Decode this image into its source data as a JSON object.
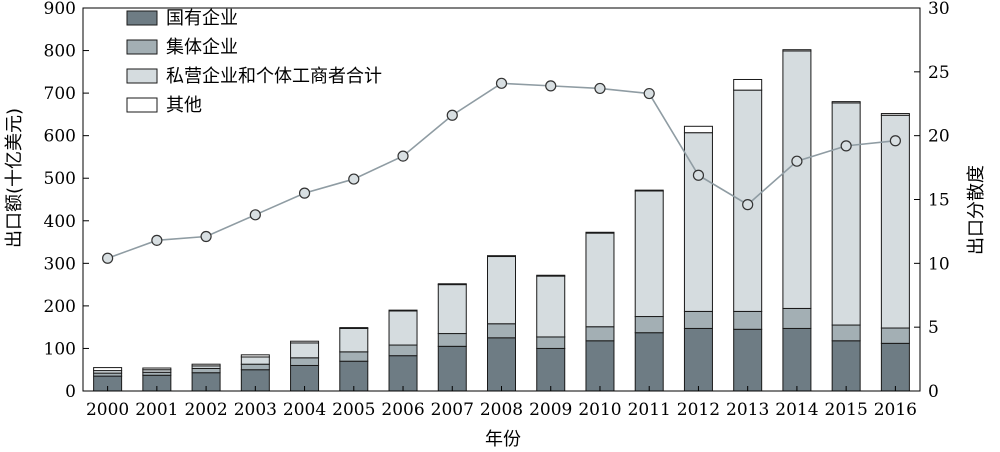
{
  "chart_data": {
    "type": "bar",
    "stacked": true,
    "xlabel": "年份",
    "ylabel": "出口额(十亿美元)",
    "y2label": "出口分散度",
    "ylim": [
      0,
      900
    ],
    "y2lim": [
      0,
      30
    ],
    "yticks": [
      0,
      100,
      200,
      300,
      400,
      500,
      600,
      700,
      800,
      900
    ],
    "y2ticks": [
      0,
      5,
      10,
      15,
      20,
      25,
      30
    ],
    "legend_position": "top-left",
    "grid": false,
    "categories": [
      "2000",
      "2001",
      "2002",
      "2003",
      "2004",
      "2005",
      "2006",
      "2007",
      "2008",
      "2009",
      "2010",
      "2011",
      "2012",
      "2013",
      "2014",
      "2015",
      "2016"
    ],
    "series": [
      {
        "name": "国有企业",
        "color": "#6e7c84",
        "values": [
          35,
          37,
          43,
          50,
          60,
          70,
          83,
          105,
          125,
          100,
          118,
          137,
          147,
          145,
          147,
          118,
          112
        ]
      },
      {
        "name": "集体企业",
        "color": "#a3afb4",
        "values": [
          7,
          7,
          10,
          13,
          18,
          22,
          25,
          30,
          33,
          27,
          33,
          38,
          40,
          42,
          47,
          37,
          36
        ]
      },
      {
        "name": "私营企业和个体工商者合计",
        "color": "#d5dcdf",
        "values": [
          6,
          6,
          6,
          17,
          35,
          55,
          80,
          115,
          158,
          143,
          220,
          295,
          420,
          520,
          605,
          522,
          500
        ]
      },
      {
        "name": "其他",
        "color": "#ffffff",
        "values": [
          7,
          4,
          4,
          5,
          4,
          2,
          2,
          2,
          2,
          2,
          2,
          2,
          15,
          25,
          3,
          3,
          4
        ]
      }
    ],
    "line_series": {
      "axis": "secondary",
      "color": "#8f9ca3",
      "values": [
        10.4,
        11.8,
        12.1,
        13.8,
        15.5,
        16.6,
        18.4,
        21.6,
        24.1,
        23.9,
        23.7,
        23.3,
        16.9,
        14.6,
        18.0,
        19.2,
        19.6
      ]
    }
  }
}
